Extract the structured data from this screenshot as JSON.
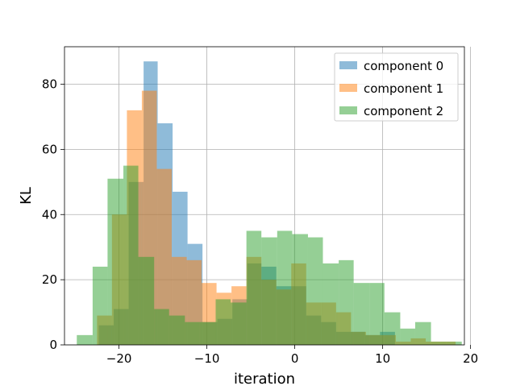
{
  "chart_data": {
    "type": "histogram",
    "title": "",
    "xlabel": "iteration",
    "ylabel": "KL",
    "xlim": [
      -26.2,
      19.3
    ],
    "ylim": [
      0,
      91.5
    ],
    "xticks": [
      -20,
      -10,
      0,
      10,
      20
    ],
    "xtick_labels": [
      "−20",
      "−10",
      "0",
      "10",
      "20"
    ],
    "yticks": [
      0,
      20,
      40,
      60,
      80
    ],
    "ytick_labels": [
      "0",
      "20",
      "40",
      "60",
      "80"
    ],
    "grid": true,
    "legend_position": "upper right",
    "series": [
      {
        "name": "component 0",
        "color": "#1f77b4",
        "opacity": 0.5,
        "bins": [
          {
            "x0": -22.3,
            "x1": -20.6,
            "count": 6
          },
          {
            "x0": -20.6,
            "x1": -18.9,
            "count": 11
          },
          {
            "x0": -18.9,
            "x1": -17.2,
            "count": 50
          },
          {
            "x0": -17.2,
            "x1": -15.6,
            "count": 87
          },
          {
            "x0": -15.6,
            "x1": -13.9,
            "count": 68
          },
          {
            "x0": -13.9,
            "x1": -12.2,
            "count": 47
          },
          {
            "x0": -12.2,
            "x1": -10.5,
            "count": 31
          },
          {
            "x0": -10.5,
            "x1": -8.8,
            "count": 7
          },
          {
            "x0": -8.8,
            "x1": -7.1,
            "count": 8
          },
          {
            "x0": -7.1,
            "x1": -5.4,
            "count": 14
          },
          {
            "x0": -5.4,
            "x1": -3.8,
            "count": 25
          },
          {
            "x0": -3.8,
            "x1": -2.1,
            "count": 24
          },
          {
            "x0": -2.1,
            "x1": -0.4,
            "count": 18
          },
          {
            "x0": -0.4,
            "x1": 1.3,
            "count": 18
          },
          {
            "x0": 1.3,
            "x1": 3.0,
            "count": 9
          },
          {
            "x0": 3.0,
            "x1": 4.7,
            "count": 7
          },
          {
            "x0": 4.7,
            "x1": 6.3,
            "count": 4
          },
          {
            "x0": 6.3,
            "x1": 8.0,
            "count": 4
          },
          {
            "x0": 8.0,
            "x1": 9.7,
            "count": 3
          },
          {
            "x0": 9.7,
            "x1": 11.4,
            "count": 4
          }
        ]
      },
      {
        "name": "component 1",
        "color": "#ff7f0e",
        "opacity": 0.5,
        "bins": [
          {
            "x0": -22.5,
            "x1": -20.8,
            "count": 9
          },
          {
            "x0": -20.8,
            "x1": -19.1,
            "count": 40
          },
          {
            "x0": -19.1,
            "x1": -17.4,
            "count": 72
          },
          {
            "x0": -17.4,
            "x1": -15.7,
            "count": 78
          },
          {
            "x0": -15.7,
            "x1": -14.0,
            "count": 54
          },
          {
            "x0": -14.0,
            "x1": -12.3,
            "count": 27
          },
          {
            "x0": -12.3,
            "x1": -10.6,
            "count": 26
          },
          {
            "x0": -10.6,
            "x1": -8.9,
            "count": 19
          },
          {
            "x0": -8.9,
            "x1": -7.2,
            "count": 16
          },
          {
            "x0": -7.2,
            "x1": -5.5,
            "count": 18
          },
          {
            "x0": -5.5,
            "x1": -3.8,
            "count": 27
          },
          {
            "x0": -3.8,
            "x1": -2.1,
            "count": 20
          },
          {
            "x0": -2.1,
            "x1": -0.4,
            "count": 17
          },
          {
            "x0": -0.4,
            "x1": 1.3,
            "count": 25
          },
          {
            "x0": 1.3,
            "x1": 3.0,
            "count": 13
          },
          {
            "x0": 3.0,
            "x1": 4.7,
            "count": 13
          },
          {
            "x0": 4.7,
            "x1": 6.4,
            "count": 10
          },
          {
            "x0": 6.4,
            "x1": 8.1,
            "count": 4
          },
          {
            "x0": 8.1,
            "x1": 9.8,
            "count": 3
          },
          {
            "x0": 9.8,
            "x1": 11.5,
            "count": 3
          },
          {
            "x0": 11.5,
            "x1": 13.2,
            "count": 1
          },
          {
            "x0": 13.2,
            "x1": 14.9,
            "count": 2
          },
          {
            "x0": 14.9,
            "x1": 16.6,
            "count": 1
          },
          {
            "x0": 16.6,
            "x1": 18.3,
            "count": 1
          }
        ]
      },
      {
        "name": "component 2",
        "color": "#2ca02c",
        "opacity": 0.5,
        "bins": [
          {
            "x0": -24.8,
            "x1": -23.0,
            "count": 3
          },
          {
            "x0": -23.0,
            "x1": -21.3,
            "count": 24
          },
          {
            "x0": -21.3,
            "x1": -19.5,
            "count": 51
          },
          {
            "x0": -19.5,
            "x1": -17.8,
            "count": 55
          },
          {
            "x0": -17.8,
            "x1": -16.0,
            "count": 27
          },
          {
            "x0": -16.0,
            "x1": -14.3,
            "count": 11
          },
          {
            "x0": -14.3,
            "x1": -12.5,
            "count": 9
          },
          {
            "x0": -12.5,
            "x1": -10.8,
            "count": 7
          },
          {
            "x0": -10.8,
            "x1": -9.0,
            "count": 7
          },
          {
            "x0": -9.0,
            "x1": -7.3,
            "count": 14
          },
          {
            "x0": -7.3,
            "x1": -5.5,
            "count": 13
          },
          {
            "x0": -5.5,
            "x1": -3.8,
            "count": 35
          },
          {
            "x0": -3.8,
            "x1": -2.0,
            "count": 33
          },
          {
            "x0": -2.0,
            "x1": -0.3,
            "count": 35
          },
          {
            "x0": -0.3,
            "x1": 1.5,
            "count": 34
          },
          {
            "x0": 1.5,
            "x1": 3.2,
            "count": 33
          },
          {
            "x0": 3.2,
            "x1": 5.0,
            "count": 25
          },
          {
            "x0": 5.0,
            "x1": 6.7,
            "count": 26
          },
          {
            "x0": 6.7,
            "x1": 8.5,
            "count": 19
          },
          {
            "x0": 8.5,
            "x1": 10.2,
            "count": 19
          },
          {
            "x0": 10.2,
            "x1": 12.0,
            "count": 10
          },
          {
            "x0": 12.0,
            "x1": 13.7,
            "count": 5
          },
          {
            "x0": 13.7,
            "x1": 15.5,
            "count": 7
          },
          {
            "x0": 15.5,
            "x1": 17.2,
            "count": 1
          },
          {
            "x0": 17.2,
            "x1": 19.0,
            "count": 1
          }
        ]
      }
    ]
  }
}
